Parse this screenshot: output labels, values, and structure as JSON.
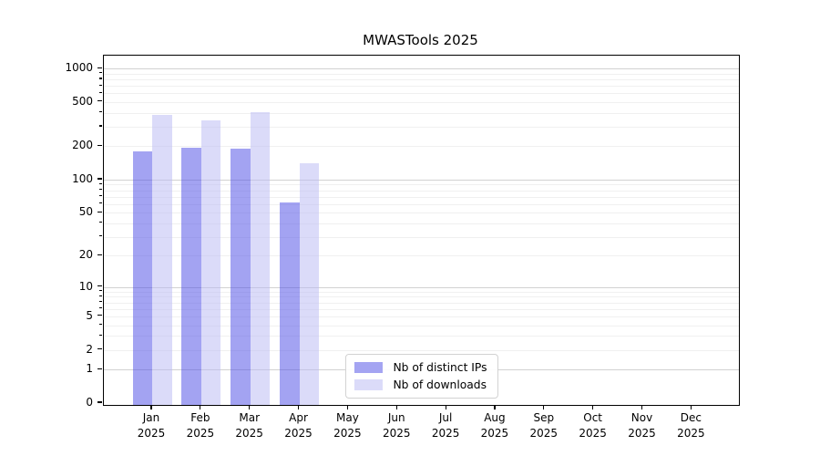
{
  "chart_data": {
    "type": "bar",
    "title": "MWASTools 2025",
    "categories": [
      "Jan 2025",
      "Feb 2025",
      "Mar 2025",
      "Apr 2025",
      "May 2025",
      "Jun 2025",
      "Jul 2025",
      "Aug 2025",
      "Sep 2025",
      "Oct 2025",
      "Nov 2025",
      "Dec 2025"
    ],
    "series": [
      {
        "name": "Nb of distinct IPs",
        "color": "#a4a4f2",
        "fill": "rgba(72,72,229,0.5)",
        "values": [
          181,
          195,
          192,
          62,
          0,
          0,
          0,
          0,
          0,
          0,
          0,
          0
        ]
      },
      {
        "name": "Nb of downloads",
        "color": "#dbdbf9",
        "fill": "rgba(183,183,243,0.5)",
        "values": [
          380,
          345,
          406,
          141,
          0,
          0,
          0,
          0,
          0,
          0,
          0,
          0
        ]
      }
    ],
    "y_ticks": [
      0,
      1,
      2,
      5,
      10,
      20,
      50,
      100,
      200,
      500,
      1000
    ],
    "y_scale": "log1p",
    "ylim": [
      0,
      1300
    ],
    "xlabel": "",
    "ylabel": "",
    "grid": "horizontal, major decades darker + minor lighter",
    "legend_position": "lower center"
  }
}
